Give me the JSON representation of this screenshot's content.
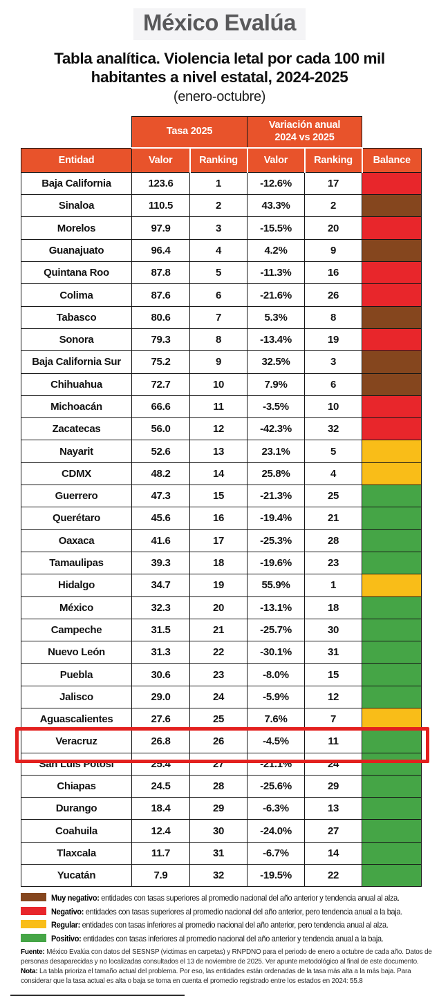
{
  "logo": {
    "text": "México Evalúa"
  },
  "title": {
    "line1": "Tabla analítica. Violencia letal por cada 100 mil",
    "line2": "habitantes a nivel estatal, 2024-2025",
    "subtitle": "(enero-octubre)"
  },
  "chart_data": {
    "type": "table",
    "title": "Tabla analítica. Violencia letal por cada 100 mil habitantes a nivel estatal, 2024-2025",
    "subtitle": "(enero-octubre)",
    "group_headers": [
      "Tasa 2025",
      "Variación anual 2024 vs 2025"
    ],
    "columns": [
      "Entidad",
      "Valor",
      "Ranking",
      "Valor",
      "Ranking",
      "Balance"
    ],
    "national_average_2024": 55.8,
    "rows": [
      [
        "Baja California",
        "123.6",
        "1",
        "-12.6%",
        "17",
        "negativo"
      ],
      [
        "Sinaloa",
        "110.5",
        "2",
        "43.3%",
        "2",
        "muy_negativo"
      ],
      [
        "Morelos",
        "97.9",
        "3",
        "-15.5%",
        "20",
        "negativo"
      ],
      [
        "Guanajuato",
        "96.4",
        "4",
        "4.2%",
        "9",
        "muy_negativo"
      ],
      [
        "Quintana Roo",
        "87.8",
        "5",
        "-11.3%",
        "16",
        "negativo"
      ],
      [
        "Colima",
        "87.6",
        "6",
        "-21.6%",
        "26",
        "negativo"
      ],
      [
        "Tabasco",
        "80.6",
        "7",
        "5.3%",
        "8",
        "muy_negativo"
      ],
      [
        "Sonora",
        "79.3",
        "8",
        "-13.4%",
        "19",
        "negativo"
      ],
      [
        "Baja California Sur",
        "75.2",
        "9",
        "32.5%",
        "3",
        "muy_negativo"
      ],
      [
        "Chihuahua",
        "72.7",
        "10",
        "7.9%",
        "6",
        "muy_negativo"
      ],
      [
        "Michoacán",
        "66.6",
        "11",
        "-3.5%",
        "10",
        "negativo"
      ],
      [
        "Zacatecas",
        "56.0",
        "12",
        "-42.3%",
        "32",
        "negativo"
      ],
      [
        "Nayarit",
        "52.6",
        "13",
        "23.1%",
        "5",
        "regular"
      ],
      [
        "CDMX",
        "48.2",
        "14",
        "25.8%",
        "4",
        "regular"
      ],
      [
        "Guerrero",
        "47.3",
        "15",
        "-21.3%",
        "25",
        "positivo"
      ],
      [
        "Querétaro",
        "45.6",
        "16",
        "-19.4%",
        "21",
        "positivo"
      ],
      [
        "Oaxaca",
        "41.6",
        "17",
        "-25.3%",
        "28",
        "positivo"
      ],
      [
        "Tamaulipas",
        "39.3",
        "18",
        "-19.6%",
        "23",
        "positivo"
      ],
      [
        "Hidalgo",
        "34.7",
        "19",
        "55.9%",
        "1",
        "regular"
      ],
      [
        "México",
        "32.3",
        "20",
        "-13.1%",
        "18",
        "positivo"
      ],
      [
        "Campeche",
        "31.5",
        "21",
        "-25.7%",
        "30",
        "positivo"
      ],
      [
        "Nuevo León",
        "31.3",
        "22",
        "-30.1%",
        "31",
        "positivo"
      ],
      [
        "Puebla",
        "30.6",
        "23",
        "-8.0%",
        "15",
        "positivo"
      ],
      [
        "Jalisco",
        "29.0",
        "24",
        "-5.9%",
        "12",
        "positivo"
      ],
      [
        "Aguascalientes",
        "27.6",
        "25",
        "7.6%",
        "7",
        "regular"
      ],
      [
        "Veracruz",
        "26.8",
        "26",
        "-4.5%",
        "11",
        "positivo"
      ],
      [
        "San Luis Potosí",
        "25.4",
        "27",
        "-21.1%",
        "24",
        "positivo"
      ],
      [
        "Chiapas",
        "24.5",
        "28",
        "-25.6%",
        "29",
        "positivo"
      ],
      [
        "Durango",
        "18.4",
        "29",
        "-6.3%",
        "13",
        "positivo"
      ],
      [
        "Coahuila",
        "12.4",
        "30",
        "-24.0%",
        "27",
        "positivo"
      ],
      [
        "Tlaxcala",
        "11.7",
        "31",
        "-6.7%",
        "14",
        "positivo"
      ],
      [
        "Yucatán",
        "7.9",
        "32",
        "-19.5%",
        "22",
        "positivo"
      ]
    ]
  },
  "balance_colors": {
    "muy_negativo": "#85461e",
    "negativo": "#e8262b",
    "regular": "#f9bd18",
    "positivo": "#45a546"
  },
  "header_color": "#e8532b",
  "highlight": {
    "row": "Veracruz",
    "color": "#e3201e"
  },
  "legend": {
    "items": [
      {
        "key": "muy_negativo",
        "label": "Muy negativo:",
        "text": "entidades con tasas superiores al promedio nacional del año anterior y tendencia anual al alza."
      },
      {
        "key": "negativo",
        "label": "Negativo:",
        "text": "entidades con tasas superiores al promedio nacional del año anterior, pero tendencia anual a la baja."
      },
      {
        "key": "regular",
        "label": "Regular:",
        "text": "entidades con tasas inferiores al promedio nacional del año anterior, pero tendencia anual al alza."
      },
      {
        "key": "positivo",
        "label": "Positivo:",
        "text": "entidades con tasas inferiores al promedio nacional del año anterior y tendencia anual a la baja."
      }
    ]
  },
  "footer": {
    "fuente_label": "Fuente:",
    "fuente_text": " México Evalúa con datos del SESNSP (victimas en carpetas) y RNPDNO para el periodo de enero a octubre de cada año. Datos de personas desaparecidas y no localizadas consultados el 13 de noviembre de 2025. Ver apunte metodológico al final de este documento.",
    "nota_label": "Nota:",
    "nota_text": " La tabla prioriza el tamaño actual del problema. Por eso, las entidades están ordenadas de la tasa más alta a la más baja. Para considerar que la tasa actual es alta o baja se toma en cuenta el promedio registrado entre los estados en 2024: 55.8"
  }
}
